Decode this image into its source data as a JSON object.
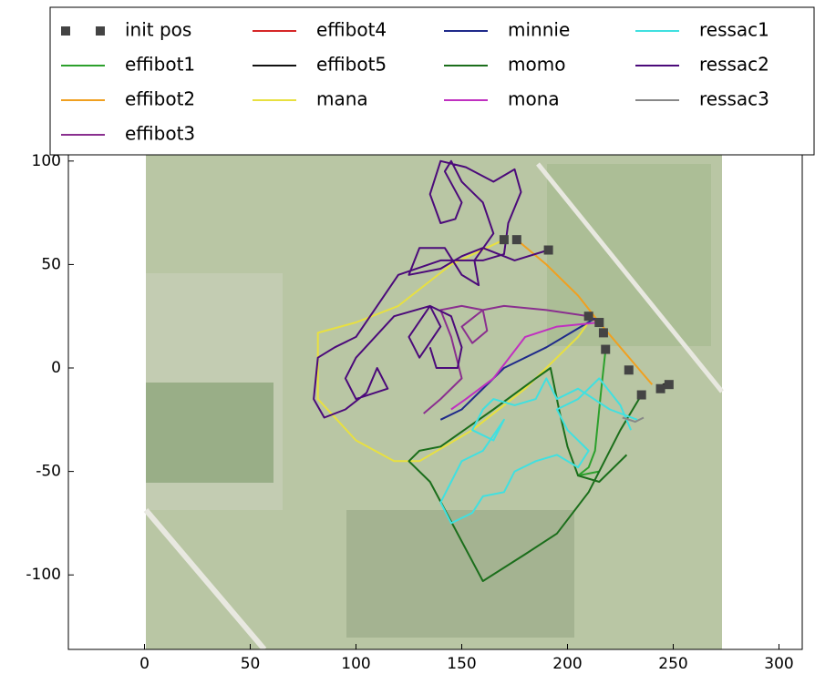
{
  "chart_data": {
    "type": "line",
    "xlim": [
      -36,
      311
    ],
    "ylim": [
      -136,
      103
    ],
    "xticks": [
      0,
      50,
      100,
      150,
      200,
      250,
      300
    ],
    "yticks": [
      -100,
      -50,
      0,
      50,
      100
    ],
    "legend": {
      "loc": "upper center",
      "ncol": 4
    },
    "series": [
      {
        "name": "init pos",
        "kind": "scatter",
        "color": "#444444",
        "x": [
          170,
          176,
          191,
          210,
          215,
          217,
          218,
          229,
          235,
          244,
          248
        ],
        "values": [
          62,
          62,
          57,
          25,
          22,
          17,
          9,
          -1,
          -13,
          -10,
          -8
        ]
      },
      {
        "name": "effibot1",
        "color": "#2ca02c",
        "x": [
          218,
          216,
          213,
          210,
          205,
          215
        ],
        "values": [
          9,
          -10,
          -40,
          -48,
          -52,
          -50
        ]
      },
      {
        "name": "effibot2",
        "color": "#f0a020",
        "x": [
          176,
          190,
          205,
          215,
          225,
          235,
          240
        ],
        "values": [
          62,
          50,
          35,
          22,
          10,
          -2,
          -8
        ]
      },
      {
        "name": "effibot3",
        "color": "#8a2f8f",
        "x": [
          210,
          190,
          170,
          160,
          150,
          155,
          162,
          160,
          150,
          140,
          145,
          150,
          140,
          132
        ],
        "values": [
          25,
          28,
          30,
          28,
          20,
          12,
          18,
          28,
          30,
          28,
          15,
          -5,
          -15,
          -22
        ]
      },
      {
        "name": "effibot4",
        "color": "#d62728",
        "x": [
          208,
          212,
          214
        ],
        "values": [
          25,
          24,
          22
        ]
      },
      {
        "name": "effibot5",
        "color": "#111111",
        "x": [
          245,
          249
        ],
        "values": [
          -8,
          -7
        ]
      },
      {
        "name": "mana",
        "color": "#e8e040",
        "x": [
          170,
          145,
          120,
          100,
          82,
          82,
          100,
          118,
          130,
          155,
          180,
          205,
          212
        ],
        "values": [
          62,
          50,
          30,
          22,
          17,
          -15,
          -35,
          -45,
          -45,
          -30,
          -10,
          15,
          25
        ]
      },
      {
        "name": "minnie",
        "color": "#1f2a8a",
        "x": [
          213,
          190,
          170,
          155,
          150,
          140
        ],
        "values": [
          24,
          10,
          0,
          -15,
          -20,
          -25
        ]
      },
      {
        "name": "momo",
        "color": "#1b6e1b",
        "x": [
          235,
          225,
          210,
          195,
          180,
          160,
          135,
          125,
          130,
          140,
          165,
          185,
          192,
          196,
          200,
          205,
          215,
          228
        ],
        "values": [
          -13,
          -30,
          -60,
          -80,
          -90,
          -103,
          -55,
          -45,
          -40,
          -38,
          -20,
          -5,
          0,
          -20,
          -38,
          -52,
          -55,
          -42
        ]
      },
      {
        "name": "mona",
        "color": "#c030c0",
        "x": [
          215,
          195,
          180,
          165,
          152,
          145
        ],
        "values": [
          22,
          20,
          15,
          -5,
          -15,
          -20
        ]
      },
      {
        "name": "ressac1",
        "color": "#40e0e0",
        "x": [
          233,
          220,
          205,
          195,
          190,
          185,
          175,
          165,
          160,
          155,
          165,
          170,
          160,
          150,
          145,
          140,
          145,
          155,
          160,
          170,
          175,
          185,
          195,
          205,
          210,
          200,
          195,
          205,
          215,
          225,
          230
        ],
        "values": [
          -25,
          -20,
          -10,
          -15,
          -5,
          -15,
          -18,
          -15,
          -20,
          -30,
          -35,
          -25,
          -40,
          -45,
          -55,
          -65,
          -75,
          -70,
          -62,
          -60,
          -50,
          -45,
          -42,
          -48,
          -40,
          -30,
          -20,
          -15,
          -5,
          -18,
          -30
        ]
      },
      {
        "name": "ressac2",
        "color": "#4b0a7a",
        "x": [
          191,
          175,
          160,
          150,
          140,
          125,
          130,
          142,
          150,
          158,
          156,
          165,
          160,
          150,
          145,
          142,
          150,
          147,
          140,
          135,
          140,
          152,
          165,
          175,
          178,
          172,
          170,
          160,
          140,
          120,
          110,
          100,
          90,
          82,
          80,
          85,
          95,
          105,
          110,
          115,
          100,
          95,
          100,
          118,
          135,
          140,
          130,
          125,
          135,
          145,
          150,
          148,
          138,
          135
        ],
        "values": [
          57,
          52,
          58,
          54,
          48,
          45,
          58,
          58,
          45,
          40,
          52,
          65,
          80,
          90,
          100,
          95,
          80,
          72,
          70,
          84,
          100,
          97,
          90,
          96,
          85,
          70,
          55,
          52,
          52,
          45,
          30,
          15,
          10,
          5,
          -15,
          -24,
          -20,
          -12,
          0,
          -10,
          -15,
          -5,
          5,
          25,
          30,
          20,
          5,
          15,
          30,
          25,
          10,
          0,
          0,
          10
        ]
      },
      {
        "name": "ressac3",
        "color": "#888888",
        "x": [
          226,
          232,
          236
        ],
        "values": [
          -24,
          -26,
          -24
        ]
      }
    ]
  }
}
